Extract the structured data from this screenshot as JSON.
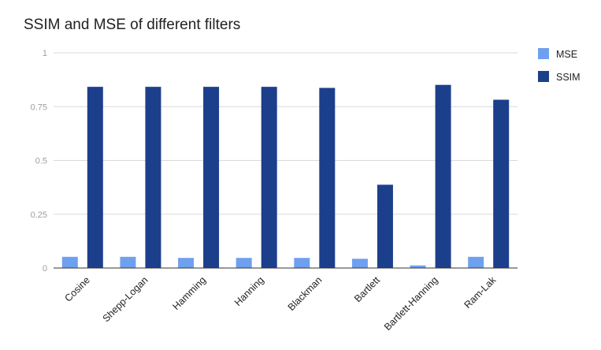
{
  "chart_data": {
    "type": "bar",
    "title": "SSIM and MSE of different filters",
    "xlabel": "",
    "ylabel": "",
    "categories": [
      "Cosine",
      "Shepp-Logan",
      "Hamming",
      "Hanning",
      "Blackman",
      "Bartlett",
      "Bartlett-Hanning",
      "Ram-Lak"
    ],
    "series": [
      {
        "name": "MSE",
        "color": "#6fa0f0",
        "values": [
          0.052,
          0.052,
          0.047,
          0.047,
          0.047,
          0.043,
          0.012,
          0.052
        ]
      },
      {
        "name": "SSIM",
        "color": "#1c3f8c",
        "values": [
          0.842,
          0.842,
          0.842,
          0.842,
          0.837,
          0.387,
          0.851,
          0.782
        ]
      }
    ],
    "ylim": [
      0,
      1
    ],
    "yticks": [
      0,
      0.25,
      0.5,
      0.75,
      1
    ],
    "ytick_labels": [
      "0",
      "0.25",
      "0.5",
      "0.75",
      "1"
    ],
    "grid": true,
    "legend": "right"
  }
}
